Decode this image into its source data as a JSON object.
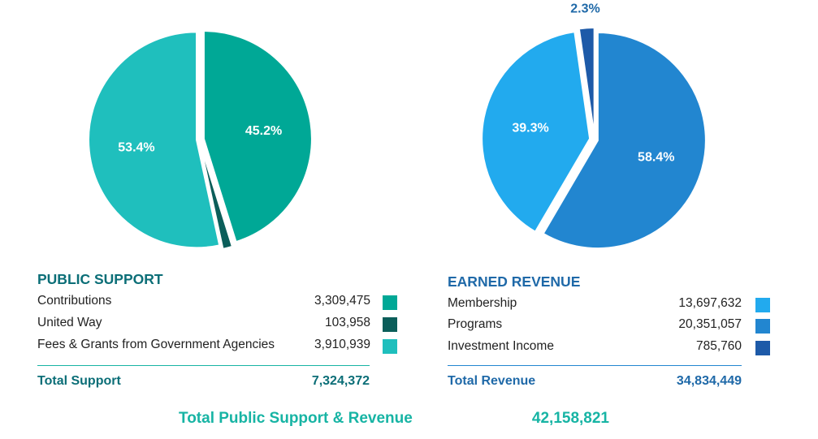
{
  "chart_data": [
    {
      "type": "pie",
      "title": "PUBLIC SUPPORT",
      "slices": [
        {
          "name": "Contributions",
          "value": 3309475,
          "percent_label": "45.2%",
          "color": "#00a896"
        },
        {
          "name": "United Way",
          "value": 103958,
          "percent_label": "1.4%",
          "color": "#0b5e5a"
        },
        {
          "name": "Fees & Grants from Government Agencies",
          "value": 3910939,
          "percent_label": "53.4%",
          "color": "#1fbfbd"
        }
      ],
      "total_label": "Total Support",
      "total_value": "7,324,372"
    },
    {
      "type": "pie",
      "title": "EARNED REVENUE",
      "slices": [
        {
          "name": "Membership",
          "value": 13697632,
          "percent_label": "39.3%",
          "color": "#22aaee"
        },
        {
          "name": "Programs",
          "value": 20351057,
          "percent_label": "58.4%",
          "color": "#2286d0"
        },
        {
          "name": "Investment Income",
          "value": 785760,
          "percent_label": "2.3%",
          "color": "#1d5aa8"
        }
      ],
      "total_label": "Total Revenue",
      "total_value": "34,834,449"
    }
  ],
  "public_support": {
    "title": "PUBLIC SUPPORT",
    "rows": [
      {
        "label": "Contributions",
        "value": "3,309,475"
      },
      {
        "label": "United Way",
        "value": "103,958"
      },
      {
        "label": "Fees & Grants from Government Agencies",
        "value": "3,910,939"
      }
    ],
    "total_label": "Total Support",
    "total_value": "7,324,372"
  },
  "earned_revenue": {
    "title": "EARNED REVENUE",
    "rows": [
      {
        "label": "Membership",
        "value": "13,697,632"
      },
      {
        "label": "Programs",
        "value": "20,351,057"
      },
      {
        "label": "Investment Income",
        "value": "785,760"
      }
    ],
    "total_label": "Total Revenue",
    "total_value": "34,834,449"
  },
  "grand_total": {
    "label": "Total Public Support & Revenue",
    "value": "42,158,821"
  },
  "colors": {
    "teal_title": "#0b6e77",
    "blue_title": "#1f69a8",
    "teal_rule": "#17b4a4",
    "blue_rule": "#2286d0",
    "grand_total": "#17b4a4"
  }
}
